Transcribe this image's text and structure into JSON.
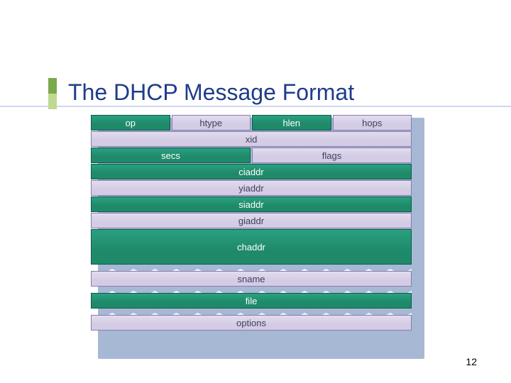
{
  "title": "The DHCP Message Format",
  "title_color": "#1f3c8a",
  "accent": {
    "top_color": "#7aa84a",
    "bottom_color": "#c0d890",
    "line_color": "#cfd6f0"
  },
  "page_number": "12",
  "diagram": {
    "bg_color": "#a6b8d4",
    "green": {
      "bg": "#1f8a6a",
      "bg_light": "#2aa080",
      "border": "#0d5a46",
      "text": "#ffffff"
    },
    "lav": {
      "bg": "#d4cce4",
      "bg_light": "#e2dcf0",
      "border": "#8a7bb0",
      "text": "#404060"
    },
    "cell_border_width": 1,
    "tear_bg": "#f5f5fa",
    "rows": [
      {
        "type": "row",
        "h": "narrow",
        "cells": [
          {
            "w": "q",
            "style": "green",
            "label": "op"
          },
          {
            "w": "q",
            "style": "lav",
            "label": "htype"
          },
          {
            "w": "q",
            "style": "green",
            "label": "hlen"
          },
          {
            "w": "q",
            "style": "lav",
            "label": "hops"
          }
        ]
      },
      {
        "type": "row",
        "h": "narrow",
        "cells": [
          {
            "w": "full",
            "style": "lav",
            "label": "xid"
          }
        ]
      },
      {
        "type": "row",
        "h": "narrow",
        "cells": [
          {
            "w": "h",
            "style": "green",
            "label": "secs"
          },
          {
            "w": "h",
            "style": "lav",
            "label": "flags"
          }
        ]
      },
      {
        "type": "row",
        "h": "narrow",
        "cells": [
          {
            "w": "full",
            "style": "green",
            "label": "ciaddr"
          }
        ]
      },
      {
        "type": "row",
        "h": "narrow",
        "cells": [
          {
            "w": "full",
            "style": "lav",
            "label": "yiaddr"
          }
        ]
      },
      {
        "type": "row",
        "h": "narrow",
        "cells": [
          {
            "w": "full",
            "style": "green",
            "label": "siaddr"
          }
        ]
      },
      {
        "type": "row",
        "h": "narrow",
        "cells": [
          {
            "w": "full",
            "style": "lav",
            "label": "giaddr"
          }
        ]
      },
      {
        "type": "row",
        "h": "tall",
        "cells": [
          {
            "w": "full",
            "style": "green",
            "label": "chaddr"
          }
        ]
      },
      {
        "type": "break"
      },
      {
        "type": "row",
        "h": "narrow",
        "cells": [
          {
            "w": "full",
            "style": "lav",
            "label": "sname"
          }
        ]
      },
      {
        "type": "break"
      },
      {
        "type": "row",
        "h": "narrow",
        "cells": [
          {
            "w": "full",
            "style": "green",
            "label": "file"
          }
        ]
      },
      {
        "type": "break"
      },
      {
        "type": "row",
        "h": "narrow",
        "cells": [
          {
            "w": "full",
            "style": "lav",
            "label": "options"
          }
        ]
      }
    ]
  }
}
